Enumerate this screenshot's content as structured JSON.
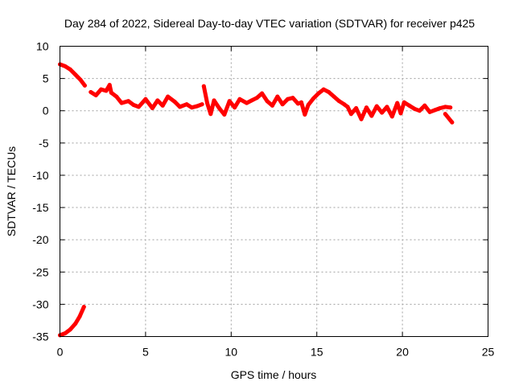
{
  "chart_data": {
    "type": "scatter",
    "title": "Day 284 of 2022, Sidereal Day-to-day VTEC variation (SDTVAR) for receiver p425",
    "xlabel": "GPS time / hours",
    "ylabel": "SDTVAR / TECUs",
    "xlim": [
      0,
      25
    ],
    "ylim": [
      -35,
      10
    ],
    "xticks": [
      0,
      5,
      10,
      15,
      20,
      25
    ],
    "yticks": [
      10,
      5,
      0,
      -5,
      -10,
      -15,
      -20,
      -25,
      -30,
      -35
    ],
    "grid": true,
    "legend": "none",
    "series": [
      {
        "name": "SDTVAR",
        "color": "#ff0000",
        "segments": [
          [
            [
              0.0,
              7.2
            ],
            [
              0.3,
              6.9
            ],
            [
              0.6,
              6.4
            ],
            [
              0.9,
              5.6
            ],
            [
              1.2,
              4.8
            ],
            [
              1.45,
              3.9
            ]
          ],
          [
            [
              1.8,
              2.9
            ],
            [
              2.1,
              2.4
            ],
            [
              2.4,
              3.3
            ],
            [
              2.7,
              3.1
            ],
            [
              2.9,
              4.0
            ],
            [
              3.0,
              2.8
            ],
            [
              3.3,
              2.2
            ],
            [
              3.6,
              1.2
            ],
            [
              4.0,
              1.5
            ],
            [
              4.3,
              0.9
            ],
            [
              4.6,
              0.6
            ],
            [
              5.0,
              1.8
            ],
            [
              5.4,
              0.4
            ],
            [
              5.7,
              1.6
            ],
            [
              6.0,
              0.8
            ],
            [
              6.3,
              2.2
            ],
            [
              6.7,
              1.4
            ],
            [
              7.0,
              0.6
            ],
            [
              7.4,
              1.0
            ],
            [
              7.7,
              0.5
            ],
            [
              8.0,
              0.7
            ],
            [
              8.3,
              1.0
            ]
          ],
          [
            [
              8.4,
              3.8
            ],
            [
              8.6,
              1.2
            ],
            [
              8.8,
              -0.5
            ],
            [
              9.0,
              1.6
            ],
            [
              9.3,
              0.4
            ],
            [
              9.6,
              -0.6
            ],
            [
              9.9,
              1.5
            ],
            [
              10.2,
              0.5
            ],
            [
              10.5,
              1.8
            ],
            [
              10.9,
              1.2
            ],
            [
              11.2,
              1.6
            ],
            [
              11.5,
              2.0
            ],
            [
              11.8,
              2.7
            ],
            [
              12.1,
              1.5
            ],
            [
              12.4,
              0.8
            ],
            [
              12.7,
              2.2
            ],
            [
              13.0,
              1.0
            ],
            [
              13.3,
              1.8
            ],
            [
              13.6,
              2.0
            ],
            [
              13.9,
              1.1
            ],
            [
              14.1,
              1.3
            ],
            [
              14.3,
              -0.6
            ],
            [
              14.5,
              0.9
            ],
            [
              14.8,
              1.9
            ],
            [
              15.1,
              2.7
            ],
            [
              15.4,
              3.3
            ],
            [
              15.7,
              2.9
            ],
            [
              16.0,
              2.2
            ],
            [
              16.3,
              1.5
            ],
            [
              16.6,
              1.0
            ],
            [
              16.8,
              0.6
            ],
            [
              17.0,
              -0.5
            ],
            [
              17.3,
              0.4
            ],
            [
              17.6,
              -1.3
            ],
            [
              17.9,
              0.5
            ],
            [
              18.2,
              -0.8
            ],
            [
              18.5,
              0.7
            ],
            [
              18.8,
              -0.3
            ],
            [
              19.1,
              0.6
            ],
            [
              19.4,
              -0.9
            ],
            [
              19.7,
              1.2
            ],
            [
              19.9,
              -0.4
            ],
            [
              20.1,
              1.3
            ],
            [
              20.4,
              0.8
            ],
            [
              20.7,
              0.3
            ],
            [
              21.0,
              0.0
            ],
            [
              21.3,
              0.8
            ],
            [
              21.6,
              -0.2
            ],
            [
              21.9,
              0.1
            ],
            [
              22.2,
              0.4
            ],
            [
              22.5,
              0.6
            ],
            [
              22.8,
              0.5
            ]
          ],
          [
            [
              22.5,
              -0.5
            ],
            [
              22.9,
              -1.8
            ]
          ],
          [
            [
              0.0,
              -34.8
            ],
            [
              0.3,
              -34.5
            ],
            [
              0.6,
              -33.9
            ],
            [
              0.9,
              -33.0
            ],
            [
              1.15,
              -31.9
            ],
            [
              1.4,
              -30.4
            ]
          ]
        ]
      }
    ]
  }
}
